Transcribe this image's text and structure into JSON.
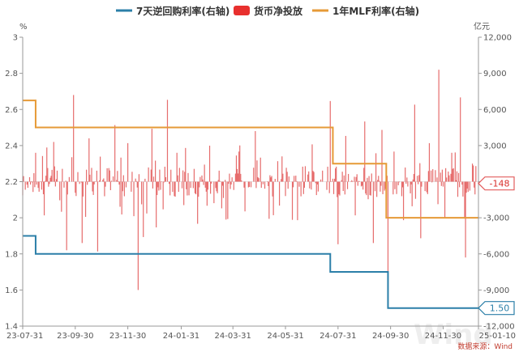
{
  "chart_data": {
    "type": "bar+line",
    "title": "",
    "legend": {
      "placement": "top-center",
      "entries": [
        {
          "label": "7天逆回购利率(右轴)",
          "color": "#2b7fa8",
          "kind": "line"
        },
        {
          "label": "货币净投放",
          "color": "#e8302e",
          "kind": "bar"
        },
        {
          "label": "1年MLF利率(右轴)",
          "color": "#e69a37",
          "kind": "line"
        }
      ]
    },
    "left_axis": {
      "unit": "%",
      "ylim": [
        1.4,
        3.0
      ],
      "ticks": [
        "1.4",
        "1.6",
        "1.8",
        "2",
        "2.2",
        "2.4",
        "2.6",
        "2.8",
        "3"
      ]
    },
    "right_axis": {
      "unit": "亿元",
      "ylim": [
        -12000,
        12000
      ],
      "ticks": [
        "-12,000",
        "-9,000",
        "-6,000",
        "-3,000",
        "0",
        "3,000",
        "6,000",
        "9,000",
        "12,000"
      ]
    },
    "x_axis": {
      "start": "2023-07-31",
      "end": "2025-01-10",
      "tick_labels": [
        {
          "date": "2023-07-31",
          "label": "23-07-31"
        },
        {
          "date": "2023-09-30",
          "label": "23-09-30"
        },
        {
          "date": "2023-11-30",
          "label": "23-11-30"
        },
        {
          "date": "2024-01-31",
          "label": "24-01-31"
        },
        {
          "date": "2024-03-31",
          "label": "24-03-31"
        },
        {
          "date": "2024-05-31",
          "label": "24-05-31"
        },
        {
          "date": "2024-07-31",
          "label": "24-07-31"
        },
        {
          "date": "2024-09-30",
          "label": "24-09-30"
        },
        {
          "date": "2024-11-30",
          "label": "24-11-30"
        },
        {
          "date": "2025-01-10",
          "label": "25-01-10"
        }
      ]
    },
    "series": [
      {
        "name": "7天逆回购利率(右轴)",
        "axis": "left",
        "step": true,
        "points": [
          {
            "x": "2023-07-31",
            "y": 1.9
          },
          {
            "x": "2023-08-15",
            "y": 1.8
          },
          {
            "x": "2024-07-22",
            "y": 1.7
          },
          {
            "x": "2024-09-27",
            "y": 1.5
          },
          {
            "x": "2025-01-10",
            "y": 1.5
          }
        ],
        "end_label": "1.50"
      },
      {
        "name": "1年MLF利率(右轴)",
        "axis": "left",
        "step": true,
        "points": [
          {
            "x": "2023-07-31",
            "y": 2.65
          },
          {
            "x": "2023-08-15",
            "y": 2.5
          },
          {
            "x": "2024-07-25",
            "y": 2.3
          },
          {
            "x": "2024-09-25",
            "y": 2.0
          },
          {
            "x": "2025-01-10",
            "y": 2.0
          }
        ]
      }
    ],
    "bars": {
      "name": "货币净投放",
      "axis": "right",
      "color": "#e35d5d",
      "spikes": [
        {
          "x": "2023-08-15",
          "y": 2400
        },
        {
          "x": "2023-08-25",
          "y": -2800
        },
        {
          "x": "2023-09-05",
          "y": 3300
        },
        {
          "x": "2023-09-14",
          "y": -2500
        },
        {
          "x": "2023-09-20",
          "y": -5700
        },
        {
          "x": "2023-09-28",
          "y": 7200
        },
        {
          "x": "2023-10-08",
          "y": -5100
        },
        {
          "x": "2023-10-16",
          "y": 3600
        },
        {
          "x": "2023-10-26",
          "y": -5800
        },
        {
          "x": "2023-11-15",
          "y": 4700
        },
        {
          "x": "2023-11-22",
          "y": 2000
        },
        {
          "x": "2023-11-30",
          "y": 3200
        },
        {
          "x": "2023-12-12",
          "y": -9000
        },
        {
          "x": "2023-12-18",
          "y": -4600
        },
        {
          "x": "2023-12-28",
          "y": 4400
        },
        {
          "x": "2024-01-02",
          "y": -3800
        },
        {
          "x": "2024-01-10",
          "y": -2300
        },
        {
          "x": "2024-01-15",
          "y": 6800
        },
        {
          "x": "2024-01-26",
          "y": 2400
        },
        {
          "x": "2024-02-05",
          "y": 2800
        },
        {
          "x": "2024-02-19",
          "y": -3500
        },
        {
          "x": "2024-03-01",
          "y": -2000
        },
        {
          "x": "2024-03-25",
          "y": -3100
        },
        {
          "x": "2024-04-07",
          "y": 2500
        },
        {
          "x": "2024-04-26",
          "y": 4200
        },
        {
          "x": "2024-05-27",
          "y": 2100
        },
        {
          "x": "2024-06-14",
          "y": -3200
        },
        {
          "x": "2024-07-01",
          "y": 3100
        },
        {
          "x": "2024-07-22",
          "y": 6700
        },
        {
          "x": "2024-07-31",
          "y": -5200
        },
        {
          "x": "2024-08-09",
          "y": 3800
        },
        {
          "x": "2024-08-20",
          "y": -2800
        },
        {
          "x": "2024-08-31",
          "y": 5000
        },
        {
          "x": "2024-09-10",
          "y": -5100
        },
        {
          "x": "2024-09-20",
          "y": 4300
        },
        {
          "x": "2024-09-27",
          "y": -8700
        },
        {
          "x": "2024-10-04",
          "y": 2500
        },
        {
          "x": "2024-10-15",
          "y": -3200
        },
        {
          "x": "2024-10-28",
          "y": 6400
        },
        {
          "x": "2024-11-04",
          "y": -4700
        },
        {
          "x": "2024-11-14",
          "y": 3200
        },
        {
          "x": "2024-11-25",
          "y": 9300
        },
        {
          "x": "2024-12-02",
          "y": -3000
        },
        {
          "x": "2024-12-10",
          "y": 2400
        },
        {
          "x": "2024-12-20",
          "y": 7000
        },
        {
          "x": "2024-12-26",
          "y": -6300
        },
        {
          "x": "2025-01-03",
          "y": 1500
        },
        {
          "x": "2025-01-10",
          "y": -148
        }
      ],
      "end_label": "-148"
    }
  },
  "source_note": "数据来源：Wind",
  "watermark": "Wind"
}
